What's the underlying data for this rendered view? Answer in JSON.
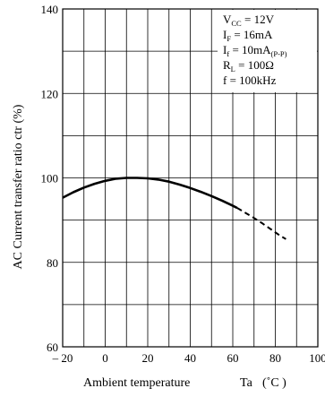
{
  "chart_data": {
    "type": "line",
    "title": "",
    "xlabel": "Ambient temperature",
    "xlabel_symbol": "Ta",
    "xlabel_unit": "(˚C )",
    "ylabel": "AC Current transfer ratio   ctr  (%)",
    "xlim": [
      -20,
      100
    ],
    "ylim": [
      60,
      140
    ],
    "x_ticks": [
      -20,
      0,
      20,
      40,
      60,
      80,
      100
    ],
    "x_tick_labels": [
      "– 20",
      "0",
      "20",
      "40",
      "60",
      "80",
      "100"
    ],
    "y_ticks": [
      60,
      80,
      100,
      120,
      140
    ],
    "y_tick_labels": [
      "60",
      "80",
      "100",
      "120",
      "140"
    ],
    "grid": true,
    "x_minor_step": 10,
    "y_minor_step": 10,
    "conditions": [
      {
        "main": "V",
        "sub": "CC",
        "rest": " = 12V"
      },
      {
        "main": "I",
        "sub": "F",
        "rest": " = 16mA"
      },
      {
        "main": "I",
        "sub": "f",
        "rest": " = 10mA",
        "sub2": "(P-P)"
      },
      {
        "main": "R",
        "sub": "L",
        "rest": " = 100Ω"
      },
      {
        "main": "f",
        "sub": "",
        "rest": " = 100kHz"
      }
    ],
    "conditions_placement": "top-right",
    "series": [
      {
        "style": "solid",
        "color": "#000000",
        "x": [
          -20,
          -15,
          -10,
          -5,
          0,
          5,
          10,
          15,
          20,
          25,
          30,
          35,
          40,
          45,
          50,
          55,
          60,
          62
        ],
        "values": [
          95.3,
          96.6,
          97.7,
          98.6,
          99.3,
          99.8,
          100.0,
          100.0,
          99.9,
          99.6,
          99.1,
          98.4,
          97.6,
          96.7,
          95.7,
          94.6,
          93.4,
          92.9
        ]
      },
      {
        "style": "dashed",
        "color": "#000000",
        "x": [
          62,
          66,
          70,
          74,
          78,
          82,
          85
        ],
        "values": [
          92.9,
          91.7,
          90.5,
          89.2,
          87.8,
          86.4,
          85.5
        ]
      }
    ]
  }
}
